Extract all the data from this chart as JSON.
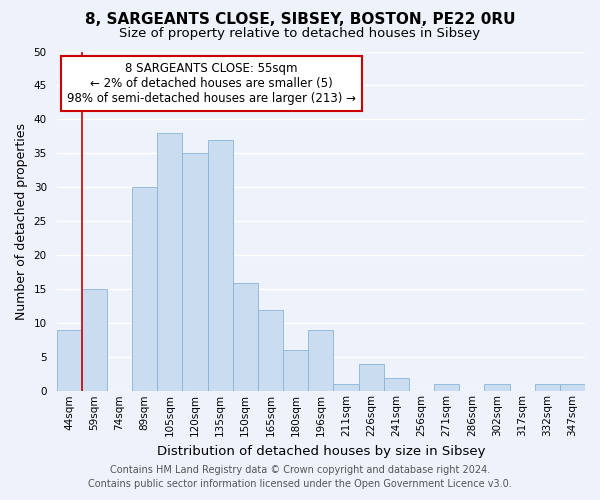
{
  "title": "8, SARGEANTS CLOSE, SIBSEY, BOSTON, PE22 0RU",
  "subtitle": "Size of property relative to detached houses in Sibsey",
  "xlabel": "Distribution of detached houses by size in Sibsey",
  "ylabel": "Number of detached properties",
  "bin_labels": [
    "44sqm",
    "59sqm",
    "74sqm",
    "89sqm",
    "105sqm",
    "120sqm",
    "135sqm",
    "150sqm",
    "165sqm",
    "180sqm",
    "196sqm",
    "211sqm",
    "226sqm",
    "241sqm",
    "256sqm",
    "271sqm",
    "286sqm",
    "302sqm",
    "317sqm",
    "332sqm",
    "347sqm"
  ],
  "bar_heights": [
    9,
    15,
    0,
    30,
    38,
    35,
    37,
    16,
    12,
    6,
    9,
    1,
    4,
    2,
    0,
    1,
    0,
    1,
    0,
    1,
    1
  ],
  "bar_color": "#c9dcf0",
  "bar_edge_color": "#8ab4d8",
  "highlight_after_bar": 1,
  "annotation_box_text": "8 SARGEANTS CLOSE: 55sqm\n← 2% of detached houses are smaller (5)\n98% of semi-detached houses are larger (213) →",
  "annotation_box_color": "#ffffff",
  "annotation_box_edge_color": "#cc0000",
  "marker_line_color": "#cc0000",
  "ylim": [
    0,
    50
  ],
  "yticks": [
    0,
    5,
    10,
    15,
    20,
    25,
    30,
    35,
    40,
    45,
    50
  ],
  "footer_line1": "Contains HM Land Registry data © Crown copyright and database right 2024.",
  "footer_line2": "Contains public sector information licensed under the Open Government Licence v3.0.",
  "bg_color": "#eef2fa",
  "grid_color": "#ffffff",
  "title_fontsize": 11,
  "subtitle_fontsize": 9.5,
  "axis_label_fontsize": 9,
  "tick_fontsize": 7.5,
  "annotation_fontsize": 8.5,
  "footer_fontsize": 7
}
